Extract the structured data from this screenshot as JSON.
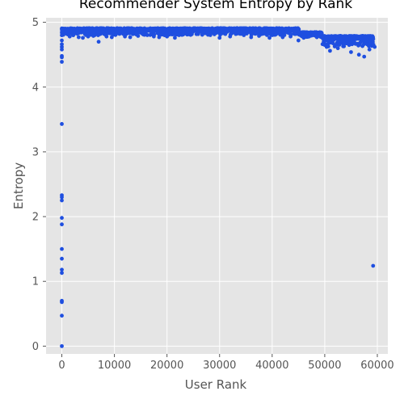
{
  "chart_data": {
    "type": "scatter",
    "title": "Recommender System Entropy by Rank",
    "xlabel": "User Rank",
    "ylabel": "Entropy",
    "xlim": [
      -3000,
      62000
    ],
    "ylim": [
      -0.12,
      5.07
    ],
    "xticks": [
      0,
      10000,
      20000,
      30000,
      40000,
      50000,
      60000
    ],
    "yticks": [
      0,
      1,
      2,
      3,
      4,
      5
    ],
    "grid": true,
    "legend": "none",
    "background_color": "#e5e5e5",
    "grid_color": "#ffffff",
    "point_color": "#1f4fe0",
    "series": [
      {
        "low_outliers": {
          "x": [
            0,
            0,
            0,
            0,
            0,
            0,
            0,
            0,
            0,
            0,
            0,
            0,
            0,
            0,
            0,
            0,
            0,
            0,
            0,
            0,
            0,
            0,
            0,
            59200
          ],
          "y": [
            4.89,
            4.84,
            4.8,
            4.72,
            4.66,
            4.62,
            4.58,
            4.48,
            4.46,
            4.39,
            3.43,
            2.33,
            2.3,
            2.25,
            1.98,
            1.88,
            1.5,
            1.35,
            1.18,
            1.13,
            0.7,
            0.68,
            0.47,
            1.24
          ]
        },
        "upper_band": [
          {
            "x_start": 0,
            "x_end": 45000,
            "y_top": 4.91,
            "y_bottom": 4.8
          },
          {
            "x_start": 45000,
            "x_end": 49500,
            "y_top": 4.85,
            "y_bottom": 4.77
          },
          {
            "x_start": 49500,
            "x_end": 59200,
            "y_top": 4.79,
            "y_bottom": 4.62
          }
        ],
        "scattered_band_points": {
          "x": [
            1500,
            3200,
            4000,
            5000,
            6000,
            7000,
            8500,
            9500,
            12000,
            13000,
            14500,
            17500,
            18500,
            20000,
            21500,
            30000,
            32000,
            36000,
            37500,
            39500,
            42000,
            43500,
            45000,
            46000,
            47000,
            48500,
            50000,
            51000,
            52500,
            53500,
            55000,
            56500,
            57500,
            58500,
            59500,
            0
          ],
          "y": [
            4.78,
            4.77,
            4.76,
            4.78,
            4.79,
            4.7,
            4.78,
            4.77,
            4.78,
            4.77,
            4.79,
            4.78,
            4.77,
            4.78,
            4.76,
            4.76,
            4.78,
            4.77,
            4.79,
            4.76,
            4.77,
            4.78,
            4.72,
            4.76,
            4.78,
            4.77,
            4.65,
            4.56,
            4.6,
            4.63,
            4.54,
            4.5,
            4.47,
            4.58,
            4.62,
            0.0
          ]
        }
      }
    ]
  }
}
